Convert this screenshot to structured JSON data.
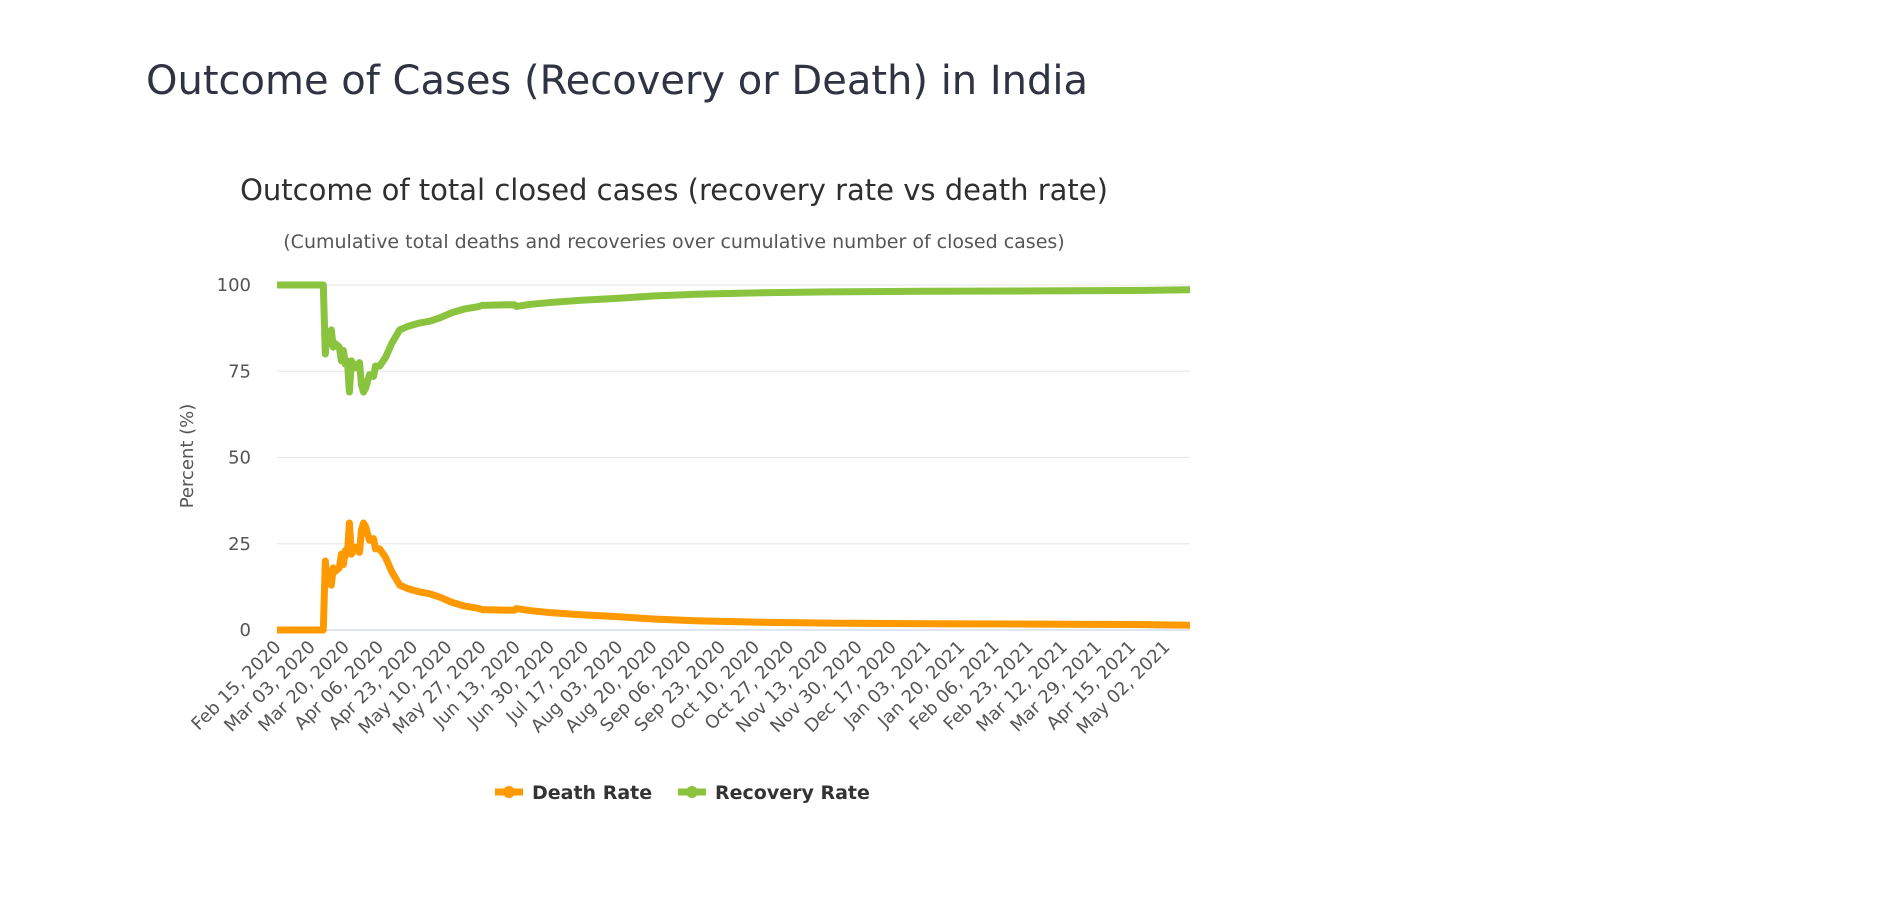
{
  "page": {
    "heading": "Outcome of Cases (Recovery or Death) in India"
  },
  "chart_data": {
    "type": "line",
    "title": "Outcome of total closed cases (recovery rate vs death rate)",
    "subtitle": "(Cumulative total deaths and recoveries over cumulative number of closed cases)",
    "xlabel": "",
    "ylabel": "Percent (%)",
    "ylim": [
      0,
      100
    ],
    "yticks": [
      0,
      25,
      50,
      75,
      100
    ],
    "grid": true,
    "legend_position": "bottom-center",
    "x_range": [
      "Feb 15, 2020",
      "May 14, 2021"
    ],
    "x_tick_labels": [
      "Feb 15, 2020",
      "Mar 03, 2020",
      "Mar 20, 2020",
      "Apr 06, 2020",
      "Apr 23, 2020",
      "May 10, 2020",
      "May 27, 2020",
      "Jun 13, 2020",
      "Jun 30, 2020",
      "Jul 17, 2020",
      "Aug 03, 2020",
      "Aug 20, 2020",
      "Sep 06, 2020",
      "Sep 23, 2020",
      "Oct 10, 2020",
      "Oct 27, 2020",
      "Nov 13, 2020",
      "Nov 30, 2020",
      "Dec 17, 2020",
      "Jan 03, 2021",
      "Jan 20, 2021",
      "Feb 06, 2021",
      "Feb 23, 2021",
      "Mar 12, 2021",
      "Mar 29, 2021",
      "Apr 15, 2021",
      "May 02, 2021"
    ],
    "series": [
      {
        "name": "Death Rate",
        "color": "#ff9900",
        "points": [
          [
            "Feb 15, 2020",
            0
          ],
          [
            "Mar 09, 2020",
            0
          ],
          [
            "Mar 10, 2020",
            20
          ],
          [
            "Mar 11, 2020",
            13.5
          ],
          [
            "Mar 12, 2020",
            17
          ],
          [
            "Mar 13, 2020",
            13
          ],
          [
            "Mar 14, 2020",
            18
          ],
          [
            "Mar 15, 2020",
            17
          ],
          [
            "Mar 17, 2020",
            18
          ],
          [
            "Mar 18, 2020",
            22
          ],
          [
            "Mar 19, 2020",
            19
          ],
          [
            "Mar 20, 2020",
            23
          ],
          [
            "Mar 21, 2020",
            22
          ],
          [
            "Mar 22, 2020",
            31
          ],
          [
            "Mar 23, 2020",
            22
          ],
          [
            "Mar 25, 2020",
            24
          ],
          [
            "Mar 27, 2020",
            22.5
          ],
          [
            "Mar 28, 2020",
            29
          ],
          [
            "Mar 29, 2020",
            31
          ],
          [
            "Mar 30, 2020",
            30
          ],
          [
            "Apr 01, 2020",
            26
          ],
          [
            "Apr 03, 2020",
            26.5
          ],
          [
            "Apr 04, 2020",
            23.5
          ],
          [
            "Apr 06, 2020",
            23.5
          ],
          [
            "Apr 09, 2020",
            21
          ],
          [
            "Apr 12, 2020",
            17
          ],
          [
            "Apr 16, 2020",
            13
          ],
          [
            "Apr 20, 2020",
            12
          ],
          [
            "Apr 26, 2020",
            11
          ],
          [
            "May 01, 2020",
            10.5
          ],
          [
            "May 06, 2020",
            9.5
          ],
          [
            "May 12, 2020",
            8
          ],
          [
            "May 18, 2020",
            7
          ],
          [
            "May 25, 2020",
            6.3
          ],
          [
            "May 27, 2020",
            5.9
          ],
          [
            "Jun 04, 2020",
            5.8
          ],
          [
            "Jun 12, 2020",
            5.7
          ],
          [
            "Jun 13, 2020",
            6.2
          ],
          [
            "Jun 20, 2020",
            5.6
          ],
          [
            "Jul 01, 2020",
            5
          ],
          [
            "Jul 15, 2020",
            4.4
          ],
          [
            "Aug 01, 2020",
            3.9
          ],
          [
            "Aug 20, 2020",
            3.2
          ],
          [
            "Sep 10, 2020",
            2.7
          ],
          [
            "Oct 10, 2020",
            2.3
          ],
          [
            "Nov 15, 2020",
            2
          ],
          [
            "Jan 01, 2021",
            1.8
          ],
          [
            "Mar 01, 2021",
            1.7
          ],
          [
            "Apr 15, 2021",
            1.6
          ],
          [
            "May 14, 2021",
            1.4
          ]
        ]
      },
      {
        "name": "Recovery Rate",
        "color": "#8ac33e",
        "points": [
          [
            "Feb 15, 2020",
            100
          ],
          [
            "Mar 09, 2020",
            100
          ],
          [
            "Mar 10, 2020",
            80
          ],
          [
            "Mar 11, 2020",
            86.5
          ],
          [
            "Mar 12, 2020",
            83
          ],
          [
            "Mar 13, 2020",
            87
          ],
          [
            "Mar 14, 2020",
            82
          ],
          [
            "Mar 15, 2020",
            83
          ],
          [
            "Mar 17, 2020",
            82
          ],
          [
            "Mar 18, 2020",
            78
          ],
          [
            "Mar 19, 2020",
            81
          ],
          [
            "Mar 20, 2020",
            77
          ],
          [
            "Mar 21, 2020",
            78
          ],
          [
            "Mar 22, 2020",
            69
          ],
          [
            "Mar 23, 2020",
            78
          ],
          [
            "Mar 25, 2020",
            76
          ],
          [
            "Mar 27, 2020",
            77.5
          ],
          [
            "Mar 28, 2020",
            71
          ],
          [
            "Mar 29, 2020",
            69
          ],
          [
            "Mar 30, 2020",
            70
          ],
          [
            "Apr 01, 2020",
            74
          ],
          [
            "Apr 03, 2020",
            73.5
          ],
          [
            "Apr 04, 2020",
            76.5
          ],
          [
            "Apr 06, 2020",
            76.5
          ],
          [
            "Apr 09, 2020",
            79
          ],
          [
            "Apr 12, 2020",
            83
          ],
          [
            "Apr 16, 2020",
            87
          ],
          [
            "Apr 20, 2020",
            88
          ],
          [
            "Apr 26, 2020",
            89
          ],
          [
            "May 01, 2020",
            89.5
          ],
          [
            "May 06, 2020",
            90.5
          ],
          [
            "May 12, 2020",
            92
          ],
          [
            "May 18, 2020",
            93
          ],
          [
            "May 25, 2020",
            93.7
          ],
          [
            "May 27, 2020",
            94.1
          ],
          [
            "Jun 04, 2020",
            94.2
          ],
          [
            "Jun 12, 2020",
            94.3
          ],
          [
            "Jun 13, 2020",
            93.8
          ],
          [
            "Jun 20, 2020",
            94.4
          ],
          [
            "Jul 01, 2020",
            95
          ],
          [
            "Jul 15, 2020",
            95.6
          ],
          [
            "Aug 01, 2020",
            96.1
          ],
          [
            "Aug 20, 2020",
            96.8
          ],
          [
            "Sep 10, 2020",
            97.3
          ],
          [
            "Oct 10, 2020",
            97.7
          ],
          [
            "Nov 15, 2020",
            98
          ],
          [
            "Jan 01, 2021",
            98.2
          ],
          [
            "Mar 01, 2021",
            98.3
          ],
          [
            "Apr 15, 2021",
            98.4
          ],
          [
            "May 14, 2021",
            98.6
          ]
        ]
      }
    ]
  }
}
